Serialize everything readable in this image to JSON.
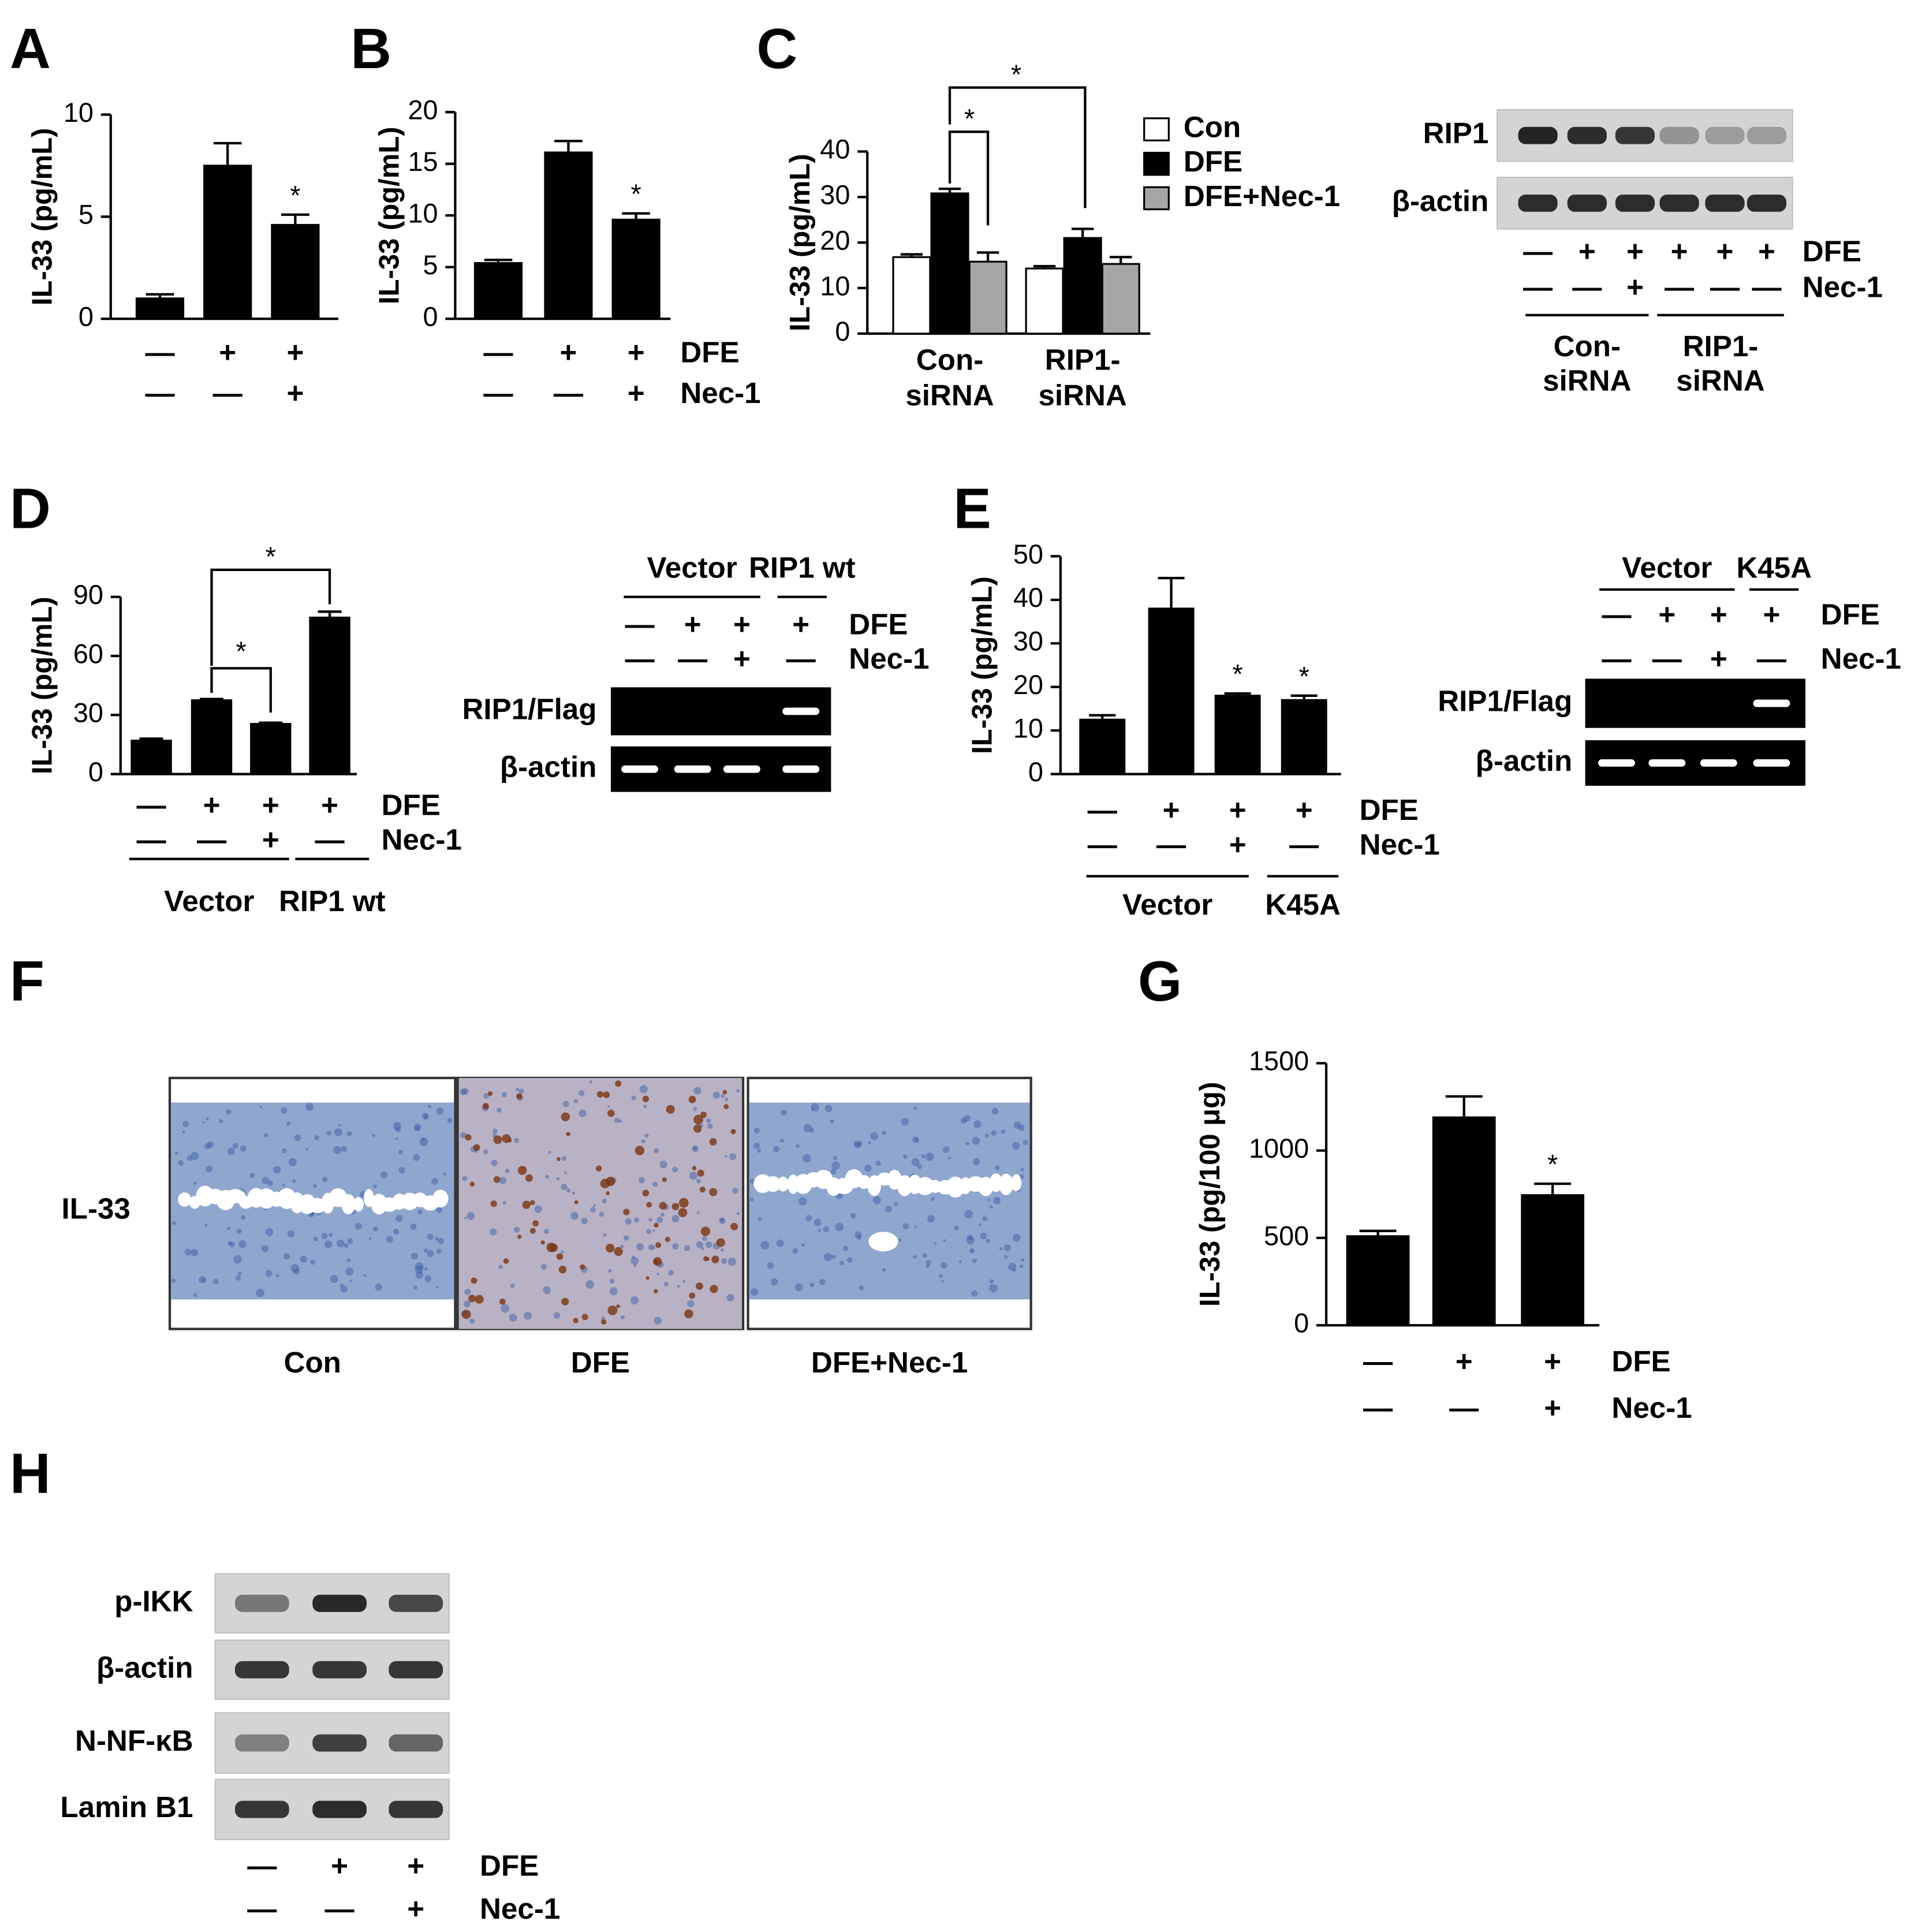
{
  "chart_data": [
    {
      "type": "bar",
      "panel": "A",
      "y_label": "IL-33 (pg/mL)",
      "values": [
        1.0,
        7.5,
        4.6
      ],
      "errors": [
        0.2,
        1.1,
        0.5
      ],
      "significance": [
        null,
        null,
        "*"
      ],
      "color": "#000000",
      "ylim": [
        0,
        10
      ],
      "yticks": [
        0,
        5,
        10
      ],
      "conditions": [
        {
          "marks": [
            "—",
            "+",
            "+"
          ]
        },
        {
          "marks": [
            "—",
            "—",
            "+"
          ]
        }
      ]
    },
    {
      "type": "bar",
      "panel": "B",
      "y_label": "IL-33 (pg/mL)",
      "values": [
        5.4,
        16.1,
        9.6
      ],
      "errors": [
        0.3,
        1.1,
        0.6
      ],
      "significance": [
        null,
        null,
        "*"
      ],
      "color": "#000000",
      "ylim": [
        0,
        20
      ],
      "yticks": [
        0,
        5,
        10,
        15,
        20
      ],
      "conditions": [
        {
          "name": "DFE",
          "marks": [
            "—",
            "+",
            "+"
          ]
        },
        {
          "name": "Nec-1",
          "marks": [
            "—",
            "—",
            "+"
          ]
        }
      ]
    },
    {
      "type": "bar",
      "panel": "C",
      "y_label": "IL-33 (pg/mL)",
      "categories": [
        [
          "Con-",
          "siRNA"
        ],
        [
          "RIP1-",
          "siRNA"
        ]
      ],
      "series": [
        {
          "name": "Con",
          "color": "#ffffff",
          "values": [
            16.8,
            14.3
          ],
          "errors": [
            0.6,
            0.5
          ]
        },
        {
          "name": "DFE",
          "color": "#000000",
          "values": [
            30.8,
            21.0
          ],
          "errors": [
            1.0,
            2.0
          ]
        },
        {
          "name": "DFE+Nec-1",
          "color": "#a6a6a6",
          "values": [
            15.8,
            15.3
          ],
          "errors": [
            2.0,
            1.5
          ]
        }
      ],
      "ylim": [
        0,
        40
      ],
      "yticks": [
        0,
        10,
        20,
        30,
        40
      ],
      "brackets": [
        "*",
        "*"
      ]
    },
    {
      "type": "bar",
      "panel": "D",
      "y_label": "IL-33 (pg/mL)",
      "values": [
        17,
        37.5,
        25.5,
        79.5
      ],
      "errors": [
        1,
        0.6,
        0.6,
        3
      ],
      "color": "#000000",
      "ylim": [
        0,
        90
      ],
      "yticks": [
        0,
        30,
        60,
        90
      ],
      "conditions": [
        {
          "name": "DFE",
          "marks": [
            "—",
            "+",
            "+",
            "+"
          ]
        },
        {
          "name": "Nec-1",
          "marks": [
            "—",
            "—",
            "+",
            "—"
          ]
        }
      ],
      "groups": [
        "Vector",
        "RIP1 wt"
      ],
      "brackets": [
        "*",
        "*"
      ]
    },
    {
      "type": "bar",
      "panel": "E",
      "y_label": "IL-33 (pg/mL)",
      "values": [
        12.5,
        38,
        18,
        17
      ],
      "errors": [
        1,
        7,
        0.5,
        1
      ],
      "significance": [
        null,
        null,
        "*",
        "*"
      ],
      "color": "#000000",
      "ylim": [
        0,
        50
      ],
      "yticks": [
        0,
        10,
        20,
        30,
        40,
        50
      ],
      "conditions": [
        {
          "name": "DFE",
          "marks": [
            "—",
            "+",
            "+",
            "+"
          ]
        },
        {
          "name": "Nec-1",
          "marks": [
            "—",
            "—",
            "+",
            "—"
          ]
        }
      ],
      "groups": [
        "Vector",
        "K45A"
      ]
    },
    {
      "type": "bar",
      "panel": "G",
      "y_label": "IL-33 (pg/100 μg)",
      "values": [
        510,
        1190,
        745
      ],
      "errors": [
        30,
        120,
        65
      ],
      "significance": [
        null,
        null,
        "*"
      ],
      "color": "#000000",
      "ylim": [
        0,
        1500
      ],
      "yticks": [
        0,
        500,
        1000,
        1500
      ],
      "conditions": [
        {
          "name": "DFE",
          "marks": [
            "—",
            "+",
            "+"
          ]
        },
        {
          "name": "Nec-1",
          "marks": [
            "—",
            "—",
            "+"
          ]
        }
      ]
    }
  ],
  "blots": [
    {
      "rows": [
        "RIP1",
        "β-actin"
      ],
      "conditions": [
        {
          "name": "DFE",
          "marks": [
            "—",
            "+",
            "+",
            "+",
            "+",
            "+"
          ]
        },
        {
          "name": "Nec-1",
          "marks": [
            "—",
            "—",
            "+",
            "—",
            "—",
            "—"
          ]
        }
      ],
      "groups": [
        [
          "Con-",
          "siRNA"
        ],
        [
          "RIP1-",
          "siRNA"
        ]
      ]
    },
    {
      "rows": [
        "RIP1/Flag",
        "β-actin"
      ],
      "conditions": [
        {
          "name": "DFE",
          "marks": [
            "—",
            "+",
            "+",
            "+"
          ]
        },
        {
          "name": "Nec-1",
          "marks": [
            "—",
            "—",
            "+",
            "—"
          ]
        }
      ],
      "groups": [
        [
          "Vector"
        ],
        [
          "RIP1 wt"
        ]
      ]
    },
    {
      "rows": [
        "RIP1/Flag",
        "β-actin"
      ],
      "conditions": [
        {
          "name": "DFE",
          "marks": [
            "—",
            "+",
            "+",
            "+"
          ]
        },
        {
          "name": "Nec-1",
          "marks": [
            "—",
            "—",
            "+",
            "—"
          ]
        }
      ],
      "groups": [
        [
          "Vector"
        ],
        [
          "K45A"
        ]
      ]
    },
    {
      "panel": "H",
      "rows": [
        "p-IKK",
        "β-actin",
        "N-NF-κB",
        "Lamin B1"
      ],
      "conditions": [
        {
          "name": "DFE",
          "marks": [
            "—",
            "+",
            "+"
          ]
        },
        {
          "name": "Nec-1",
          "marks": [
            "—",
            "—",
            "+"
          ]
        }
      ]
    }
  ],
  "histology": {
    "panel": "F",
    "row_label": "IL-33",
    "labels": [
      "Con",
      "DFE",
      "DFE+Nec-1"
    ]
  }
}
